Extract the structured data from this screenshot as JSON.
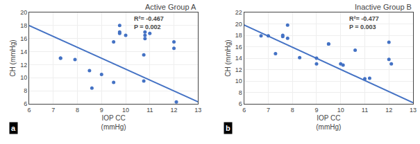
{
  "chart_data": [
    {
      "type": "scatter",
      "title": "Active Group A",
      "label": "a",
      "xlabel": "IOP CC\n(mmHg)",
      "ylabel": "CH (mmHg)",
      "xlim": [
        6,
        13
      ],
      "ylim": [
        6,
        20
      ],
      "xticks": [
        6,
        7,
        8,
        9,
        10,
        11,
        12,
        13
      ],
      "yticks": [
        6,
        8,
        10,
        12,
        14,
        16,
        18,
        20
      ],
      "grid": true,
      "series": [
        {
          "type": "scatter",
          "marker": "circle",
          "color": "#4472C4",
          "x": [
            7.3,
            7.3,
            7.9,
            8.5,
            8.6,
            9.0,
            9.5,
            9.5,
            9.75,
            9.75,
            9.75,
            10.0,
            10.75,
            10.75,
            10.8,
            10.8,
            10.8,
            11.0,
            12.0,
            12.0,
            12.1
          ],
          "values": [
            13.0,
            13.0,
            12.8,
            11.1,
            8.4,
            10.5,
            15.5,
            9.3,
            18.0,
            16.8,
            17.0,
            16.5,
            13.5,
            9.5,
            16.0,
            17.0,
            16.5,
            16.8,
            15.5,
            14.5,
            6.3
          ]
        },
        {
          "type": "line",
          "line_style": "solid",
          "color": "#4472C4",
          "x": [
            6,
            13
          ],
          "values": [
            18.0,
            6.3
          ]
        }
      ],
      "annotations": [
        {
          "text": "R²= -0.467\nP = 0.002",
          "x": 10.3,
          "y": 19.8
        }
      ]
    },
    {
      "type": "scatter",
      "title": "Inactive Group B",
      "label": "b",
      "xlabel": "IOP CC\n(mmHg)",
      "ylabel": "CH (mmHg)",
      "xlim": [
        6,
        13
      ],
      "ylim": [
        6,
        22
      ],
      "xticks": [
        6,
        7,
        8,
        9,
        10,
        11,
        12,
        13
      ],
      "yticks": [
        6,
        8,
        10,
        12,
        14,
        16,
        18,
        20,
        22
      ],
      "grid": true,
      "series": [
        {
          "type": "scatter",
          "marker": "circle",
          "color": "#4472C4",
          "x": [
            6.7,
            7.0,
            7.3,
            7.6,
            7.6,
            7.8,
            7.8,
            8.3,
            9.0,
            9.0,
            9.5,
            9.5,
            10.0,
            10.1,
            10.6,
            11.0,
            11.2,
            12.0,
            12.0,
            12.1
          ],
          "values": [
            17.9,
            17.9,
            14.8,
            17.8,
            18.0,
            19.8,
            17.5,
            14.1,
            14.0,
            13.0,
            16.5,
            16.5,
            13.0,
            12.8,
            15.4,
            10.4,
            10.5,
            13.8,
            16.8,
            13.0
          ]
        },
        {
          "type": "line",
          "line_style": "solid",
          "color": "#4472C4",
          "x": [
            6,
            13
          ],
          "values": [
            19.8,
            6.2
          ]
        }
      ],
      "annotations": [
        {
          "text": "R²= -0.477\nP = 0.003",
          "x": 10.3,
          "y": 21.8
        }
      ]
    }
  ]
}
